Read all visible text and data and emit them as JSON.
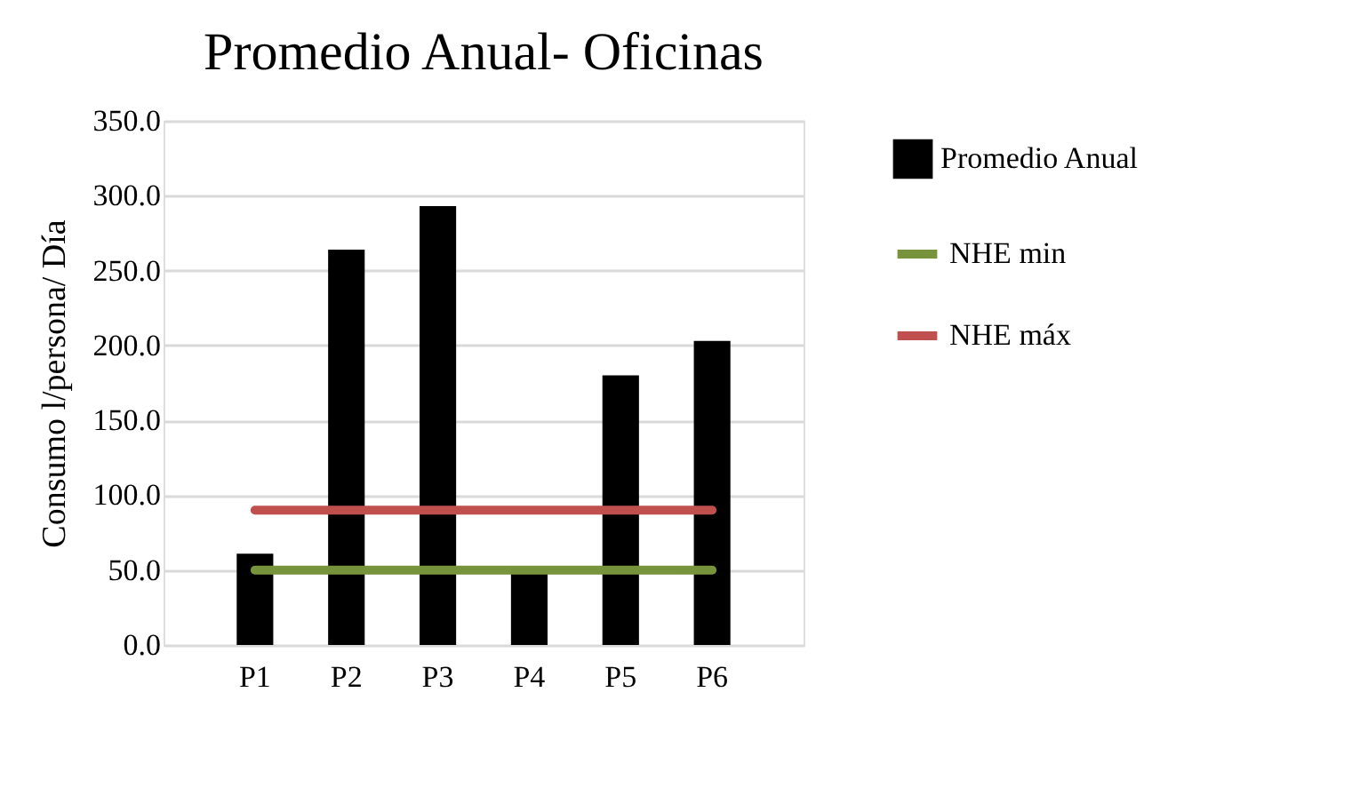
{
  "chart_data": {
    "type": "bar",
    "title": "Promedio Anual- Oficinas",
    "ylabel": "Consumo  l/persona/ Día",
    "categories": [
      "P1",
      "P2",
      "P3",
      "P4",
      "P5",
      "P6"
    ],
    "series": [
      {
        "name": "Promedio Anual",
        "color": "#000000",
        "values": [
          61,
          264,
          293,
          48,
          180,
          203
        ]
      },
      {
        "name": "NHE min",
        "type": "line",
        "color": "#77933c",
        "values": [
          50,
          50,
          50,
          50,
          50,
          50
        ]
      },
      {
        "name": "NHE máx",
        "type": "line",
        "color": "#c0504d",
        "values": [
          90,
          90,
          90,
          90,
          90,
          90
        ]
      }
    ],
    "ylim": [
      0,
      350
    ],
    "yticks": [
      {
        "value": 0,
        "label": "0.0"
      },
      {
        "value": 50,
        "label": "50.0"
      },
      {
        "value": 100,
        "label": "100.0"
      },
      {
        "value": 150,
        "label": "150.0"
      },
      {
        "value": 200,
        "label": "200.0"
      },
      {
        "value": 250,
        "label": "250.0"
      },
      {
        "value": 300,
        "label": "300.0"
      },
      {
        "value": 350,
        "label": "350.0"
      }
    ],
    "grid": "y",
    "legend": "right",
    "marker": "none"
  }
}
